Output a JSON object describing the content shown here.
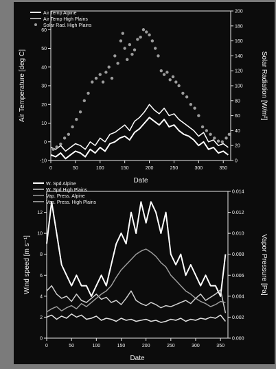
{
  "chart_data": [
    {
      "type": "scatter",
      "title": "",
      "xlabel": "Date",
      "ylabel": "Air Temperature [deg C]",
      "y2label": "Solar Radiation [W/m²]",
      "xlim": [
        0,
        365
      ],
      "ylim": [
        -10,
        70
      ],
      "y2lim": [
        0,
        200
      ],
      "x_ticks": [
        0,
        50,
        100,
        150,
        200,
        250,
        300,
        350
      ],
      "y_ticks": [
        -10,
        0,
        10,
        20,
        30,
        40,
        50,
        60
      ],
      "y2_ticks": [
        0,
        20,
        40,
        60,
        80,
        100,
        120,
        140,
        160,
        180,
        200
      ],
      "legend_position": "top-left",
      "grid": false,
      "series": [
        {
          "name": "Air Temp Alpine",
          "kind": "line",
          "axis": "left",
          "color": "#ffffff",
          "x": [
            0,
            10,
            20,
            30,
            40,
            50,
            60,
            70,
            80,
            90,
            100,
            110,
            120,
            130,
            140,
            150,
            160,
            170,
            180,
            190,
            200,
            210,
            220,
            230,
            240,
            250,
            260,
            270,
            280,
            290,
            300,
            310,
            320,
            330,
            340,
            350,
            360
          ],
          "values": [
            -7,
            -8,
            -6,
            -9,
            -7,
            -5,
            -6,
            -8,
            -4,
            -6,
            -3,
            -5,
            -1,
            0,
            2,
            3,
            1,
            5,
            7,
            10,
            13,
            11,
            9,
            12,
            8,
            9,
            6,
            4,
            3,
            1,
            -2,
            0,
            -4,
            -3,
            -6,
            -5,
            -7
          ]
        },
        {
          "name": "Air Temp High Plains",
          "kind": "line",
          "axis": "left",
          "color": "#ffffff",
          "x": [
            0,
            10,
            20,
            30,
            40,
            50,
            60,
            70,
            80,
            90,
            100,
            110,
            120,
            130,
            140,
            150,
            160,
            170,
            180,
            190,
            200,
            210,
            220,
            230,
            240,
            250,
            260,
            270,
            280,
            290,
            300,
            310,
            320,
            330,
            340,
            350,
            360
          ],
          "values": [
            -3,
            -4,
            -2,
            -5,
            -3,
            -1,
            -2,
            -4,
            0,
            -2,
            2,
            0,
            4,
            5,
            7,
            9,
            6,
            11,
            13,
            16,
            20,
            17,
            15,
            18,
            14,
            15,
            12,
            10,
            8,
            6,
            3,
            5,
            0,
            1,
            -2,
            -1,
            -3
          ]
        },
        {
          "name": "Solar Rad. High Plains",
          "kind": "scatter",
          "axis": "right",
          "color": "#9c9c9c",
          "x": [
            5,
            12,
            20,
            28,
            36,
            44,
            52,
            60,
            68,
            76,
            84,
            92,
            100,
            106,
            112,
            118,
            124,
            130,
            136,
            142,
            146,
            150,
            155,
            160,
            165,
            170,
            176,
            182,
            188,
            194,
            200,
            206,
            212,
            218,
            224,
            230,
            236,
            242,
            248,
            254,
            260,
            268,
            276,
            284,
            292,
            300,
            308,
            316,
            324,
            332,
            340,
            348,
            356,
            362
          ],
          "values": [
            15,
            18,
            22,
            30,
            35,
            45,
            55,
            65,
            80,
            90,
            105,
            110,
            115,
            105,
            118,
            125,
            110,
            140,
            130,
            160,
            170,
            150,
            135,
            155,
            142,
            148,
            162,
            165,
            175,
            172,
            168,
            160,
            150,
            140,
            120,
            115,
            118,
            108,
            112,
            105,
            100,
            90,
            85,
            75,
            70,
            60,
            45,
            40,
            35,
            30,
            26,
            25,
            30,
            35
          ]
        }
      ]
    },
    {
      "type": "line",
      "title": "",
      "xlabel": "Date",
      "ylabel": "Wind speed [m s⁻¹]",
      "y2label": "Vapor Pressure [Pa]",
      "xlim": [
        0,
        365
      ],
      "ylim": [
        0,
        14
      ],
      "y2lim": [
        0,
        0.014
      ],
      "x_ticks": [
        0,
        50,
        100,
        150,
        200,
        250,
        300,
        350
      ],
      "y_ticks": [
        0,
        2,
        4,
        6,
        8,
        10,
        12
      ],
      "y2_ticks": [
        "0.000",
        "0.002",
        "0.004",
        "0.006",
        "0.008",
        "0.010",
        "0.012",
        "0.014"
      ],
      "legend_position": "top-left",
      "grid": false,
      "series": [
        {
          "name": "W. Spd Alpine",
          "axis": "left",
          "color": "#ffffff",
          "x": [
            0,
            10,
            20,
            30,
            40,
            50,
            60,
            70,
            80,
            90,
            100,
            110,
            120,
            130,
            140,
            150,
            160,
            170,
            180,
            190,
            200,
            210,
            220,
            230,
            240,
            250,
            260,
            270,
            280,
            290,
            300,
            310,
            320,
            330,
            340,
            350,
            360
          ],
          "values": [
            9,
            13,
            10,
            7,
            6,
            5,
            6,
            5,
            5,
            4,
            5,
            6,
            5,
            7,
            9,
            10,
            9,
            12,
            10,
            13,
            11,
            13,
            12,
            10,
            12,
            8,
            7,
            8,
            6,
            7,
            6,
            5,
            6,
            5,
            5,
            4,
            8
          ]
        },
        {
          "name": "W. Spd High Plains",
          "axis": "left",
          "color": "#cfcfcf",
          "x": [
            0,
            10,
            20,
            30,
            40,
            50,
            60,
            70,
            80,
            90,
            100,
            110,
            120,
            130,
            140,
            150,
            160,
            170,
            180,
            190,
            200,
            210,
            220,
            230,
            240,
            250,
            260,
            270,
            280,
            290,
            300,
            310,
            320,
            330,
            340,
            350,
            360
          ],
          "values": [
            4.5,
            5,
            4.2,
            3.8,
            4,
            3.5,
            4.2,
            3.6,
            3.4,
            3.8,
            4.2,
            3.7,
            3.9,
            3.4,
            3.6,
            3.2,
            3.8,
            4.5,
            3.6,
            3.3,
            3.1,
            3.4,
            3.2,
            2.9,
            3.1,
            3,
            3.2,
            3.4,
            3.6,
            3.3,
            3.8,
            4.2,
            3.6,
            3.9,
            4.2,
            4.6,
            2.4
          ]
        },
        {
          "name": "Vap. Press. Alpine",
          "axis": "right",
          "color": "#9c9c9c",
          "x": [
            0,
            10,
            20,
            30,
            40,
            50,
            60,
            70,
            80,
            90,
            100,
            110,
            120,
            130,
            140,
            150,
            160,
            170,
            180,
            190,
            200,
            210,
            220,
            230,
            240,
            250,
            260,
            270,
            280,
            290,
            300,
            310,
            320,
            330,
            340,
            350,
            360
          ],
          "values": [
            0.0025,
            0.0028,
            0.003,
            0.0026,
            0.0029,
            0.0031,
            0.0028,
            0.0033,
            0.003,
            0.0034,
            0.0038,
            0.0042,
            0.0045,
            0.005,
            0.0058,
            0.0065,
            0.007,
            0.0075,
            0.008,
            0.0083,
            0.0085,
            0.0082,
            0.0078,
            0.0072,
            0.0068,
            0.006,
            0.0055,
            0.005,
            0.0045,
            0.0042,
            0.0038,
            0.0035,
            0.0033,
            0.003,
            0.0032,
            0.0035,
            0.0034
          ]
        },
        {
          "name": "Vap. Press. High Plains",
          "axis": "right",
          "color": "#e0e0e0",
          "x": [
            0,
            10,
            20,
            30,
            40,
            50,
            60,
            70,
            80,
            90,
            100,
            110,
            120,
            130,
            140,
            150,
            160,
            170,
            180,
            190,
            200,
            210,
            220,
            230,
            240,
            250,
            260,
            270,
            280,
            290,
            300,
            310,
            320,
            330,
            340,
            350,
            360
          ],
          "values": [
            0.002,
            0.0022,
            0.0018,
            0.0021,
            0.0019,
            0.0023,
            0.002,
            0.0022,
            0.0018,
            0.0019,
            0.0021,
            0.0017,
            0.0019,
            0.0018,
            0.0016,
            0.0019,
            0.0017,
            0.0018,
            0.0016,
            0.0017,
            0.0018,
            0.0016,
            0.0017,
            0.0015,
            0.0016,
            0.0018,
            0.0017,
            0.0019,
            0.0016,
            0.0018,
            0.0017,
            0.0019,
            0.0018,
            0.002,
            0.0019,
            0.0022,
            0.0016
          ]
        }
      ]
    }
  ]
}
